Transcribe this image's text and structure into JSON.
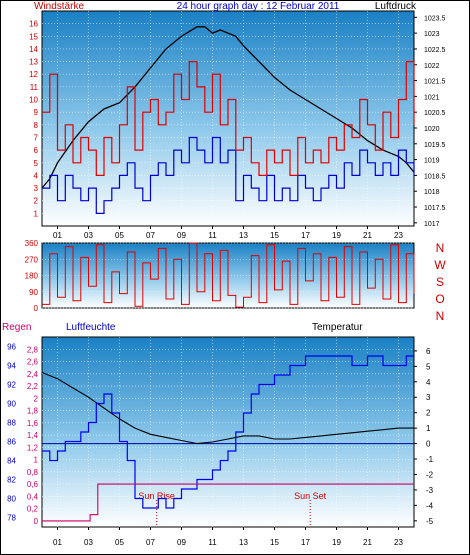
{
  "chart_data": [
    {
      "type": "line",
      "title": "24 hour graph day : 12 Februar 2011",
      "left_label": "Windstärke",
      "right_label": "Luftdruck",
      "x_ticks": [
        "01",
        "03",
        "05",
        "07",
        "09",
        "11",
        "13",
        "15",
        "17",
        "19",
        "21",
        "23"
      ],
      "left_ticks": [
        1,
        2,
        3,
        4,
        5,
        6,
        7,
        8,
        9,
        10,
        11,
        12,
        13,
        14,
        15,
        16
      ],
      "right_ticks": [
        1017,
        1017.5,
        1018,
        1018.5,
        1019,
        1019.5,
        1020,
        1020.5,
        1021,
        1021.5,
        1022,
        1022.5,
        1023,
        1023.5
      ],
      "xlim": [
        0,
        24
      ],
      "ylim_left": [
        0,
        17
      ],
      "ylim_right": [
        1016.9,
        1023.7
      ],
      "grid": true,
      "colors": {
        "gust": "#e00000",
        "wind": "#0000cc",
        "pressure": "#000000",
        "title": "#0000cc",
        "left_label": "#cc0000",
        "right_label": "#000000"
      },
      "series": [
        {
          "key": "pressure",
          "color": "#000000",
          "x": [
            0,
            0.5,
            1,
            2,
            3,
            4,
            5,
            6,
            7,
            8,
            9,
            10,
            10.5,
            11,
            11.5,
            12,
            12.5,
            13,
            14,
            15,
            16,
            17,
            18,
            19,
            20,
            21,
            22,
            23,
            23.5,
            24
          ],
          "y": [
            1018.1,
            1018.4,
            1018.9,
            1019.6,
            1020.2,
            1020.6,
            1020.8,
            1021.3,
            1021.9,
            1022.5,
            1022.9,
            1023.2,
            1023.2,
            1023.0,
            1023.1,
            1023.0,
            1022.9,
            1022.6,
            1022.1,
            1021.6,
            1021.2,
            1020.9,
            1020.6,
            1020.3,
            1020.0,
            1019.6,
            1019.3,
            1019.1,
            1018.9,
            1018.6
          ]
        },
        {
          "key": "wind",
          "color": "#0000cc",
          "x": [
            0,
            0.5,
            1,
            1.5,
            2,
            2.5,
            3,
            3.5,
            4,
            4.5,
            5,
            5.5,
            6,
            6.5,
            7,
            7.5,
            8,
            8.5,
            9,
            9.5,
            10,
            10.5,
            11,
            11.5,
            12,
            12.5,
            13,
            13.5,
            14,
            14.5,
            15,
            15.5,
            16,
            16.5,
            17,
            17.5,
            18,
            18.5,
            19,
            19.5,
            20,
            20.5,
            21,
            21.5,
            22,
            22.5,
            23,
            23.5,
            24
          ],
          "y": [
            3,
            4,
            2,
            4,
            3,
            2,
            3,
            1,
            2,
            3,
            4,
            5,
            3,
            2,
            4,
            5,
            4,
            6,
            5,
            7,
            6,
            5,
            7,
            5,
            6,
            2,
            4,
            3,
            2,
            4,
            2,
            3,
            2,
            4,
            3,
            2,
            3,
            4,
            3,
            5,
            4,
            6,
            5,
            4,
            5,
            4,
            6,
            5,
            4
          ]
        },
        {
          "key": "gust",
          "color": "#e00000",
          "x": [
            0,
            0.5,
            1,
            1.5,
            2,
            2.5,
            3,
            3.5,
            4,
            4.5,
            5,
            5.5,
            6,
            6.5,
            7,
            7.5,
            8,
            8.5,
            9,
            9.5,
            10,
            10.5,
            11,
            11.5,
            12,
            12.5,
            13,
            13.5,
            14,
            14.5,
            15,
            15.5,
            16,
            16.5,
            17,
            17.5,
            18,
            18.5,
            19,
            19.5,
            20,
            20.5,
            21,
            21.5,
            22,
            22.5,
            23,
            23.5,
            24
          ],
          "y": [
            9,
            12,
            6,
            8,
            5,
            7,
            6,
            4,
            7,
            5,
            8,
            11,
            6,
            9,
            10,
            8,
            9,
            12,
            10,
            13,
            11,
            9,
            12,
            8,
            10,
            6,
            7,
            5,
            4,
            6,
            5,
            6,
            4,
            7,
            5,
            6,
            5,
            7,
            6,
            8,
            7,
            10,
            8,
            6,
            9,
            7,
            10,
            13,
            8
          ]
        }
      ]
    },
    {
      "type": "line",
      "title": "",
      "x_ticks": [],
      "left_ticks": [
        0,
        90,
        180,
        270,
        360
      ],
      "right_label_letters": [
        "N",
        "W",
        "S",
        "O",
        "N"
      ],
      "xlim": [
        0,
        24
      ],
      "ylim": [
        0,
        360
      ],
      "colors": {
        "direction": "#e00000",
        "letters": "#cc0000"
      },
      "series": [
        {
          "key": "direction",
          "color": "#e00000",
          "x": [
            0,
            0.5,
            1,
            1.5,
            2,
            2.5,
            3,
            3.5,
            4,
            4.5,
            5,
            5.5,
            6,
            6.5,
            7,
            7.5,
            8,
            8.5,
            9,
            9.5,
            10,
            10.5,
            11,
            11.5,
            12,
            12.5,
            13,
            13.5,
            14,
            14.5,
            15,
            15.5,
            16,
            16.5,
            17,
            17.5,
            18,
            18.5,
            19,
            19.5,
            20,
            20.5,
            21,
            21.5,
            22,
            22.5,
            23,
            23.5,
            24
          ],
          "y": [
            20,
            300,
            60,
            340,
            40,
            280,
            120,
            350,
            30,
            200,
            80,
            310,
            10,
            250,
            160,
            330,
            50,
            270,
            20,
            360,
            90,
            300,
            40,
            320,
            70,
            5,
            60,
            290,
            30,
            350,
            100,
            260,
            20,
            330,
            150,
            300,
            40,
            280,
            60,
            340,
            20,
            310,
            110,
            270,
            50,
            350,
            30,
            300,
            80
          ]
        }
      ]
    },
    {
      "type": "line",
      "title": "",
      "rain_label": "Regen",
      "humidity_label": "Luftfeuchte",
      "temperature_label": "Temperatur",
      "x_ticks": [
        "01",
        "03",
        "05",
        "07",
        "09",
        "11",
        "13",
        "15",
        "17",
        "19",
        "21",
        "23"
      ],
      "humidity_ticks": [
        78,
        80,
        82,
        84,
        86,
        88,
        90,
        92,
        94,
        96
      ],
      "rain_ticks": [
        "0",
        "0,2",
        "0,4",
        "0,6",
        "0,8",
        "1",
        "1,2",
        "1,4",
        "1,6",
        "1,8",
        "2",
        "2,2",
        "2,4",
        "2,6",
        "2,8"
      ],
      "temperature_ticks": [
        -5,
        -4,
        -3,
        -2,
        -1,
        0,
        1,
        2,
        3,
        4,
        5,
        6
      ],
      "annotations": [
        {
          "text": "Sun Rise",
          "x": 7.4
        },
        {
          "text": "Sun Set",
          "x": 17.3
        }
      ],
      "xlim": [
        0,
        24
      ],
      "ylim_humidity": [
        77,
        97
      ],
      "ylim_rain": [
        -0.1,
        3.0
      ],
      "ylim_temperature": [
        -5.4,
        6.9
      ],
      "colors": {
        "humidity": "#0000ee",
        "rain": "#cc0066",
        "temperature": "#000000",
        "freezing_line": "#0000aa",
        "sun_marker": "#cc0000",
        "rain_label": "#cc0066",
        "humidity_label": "#0000cc",
        "temperature_label": "#000000"
      },
      "series": [
        {
          "key": "temperature",
          "color": "#000000",
          "x": [
            0,
            1,
            2,
            3,
            4,
            5,
            6,
            7,
            8,
            9,
            10,
            11,
            12,
            13,
            14,
            15,
            16,
            17,
            18,
            19,
            20,
            21,
            22,
            23,
            24
          ],
          "y": [
            4.6,
            4.2,
            3.6,
            3.0,
            2.3,
            1.6,
            1.0,
            0.6,
            0.4,
            0.2,
            0.0,
            0.1,
            0.3,
            0.5,
            0.5,
            0.3,
            0.3,
            0.4,
            0.5,
            0.6,
            0.7,
            0.8,
            0.9,
            1.0,
            1.0
          ]
        },
        {
          "key": "humidity",
          "color": "#0000ee",
          "x": [
            0,
            0.5,
            1,
            1.5,
            2,
            2.5,
            3,
            3.5,
            4,
            4.5,
            5,
            5.5,
            6,
            6.5,
            7,
            7.5,
            8,
            8.5,
            9,
            9.5,
            10,
            10.5,
            11,
            11.5,
            12,
            12.5,
            13,
            13.5,
            14,
            15,
            16,
            17,
            18,
            19,
            20,
            21,
            22,
            23,
            23.5,
            24
          ],
          "y": [
            85,
            84,
            85,
            86,
            86,
            87,
            88,
            90,
            91,
            89,
            86,
            84,
            80,
            79,
            79,
            80,
            79,
            80,
            81,
            81,
            82,
            82,
            83,
            84,
            85,
            87,
            89,
            91,
            92,
            93,
            94,
            95,
            95,
            95,
            94,
            95,
            94,
            94,
            95,
            95
          ]
        },
        {
          "key": "rain",
          "color": "#cc0066",
          "x": [
            0,
            3.1,
            3.1,
            3.6,
            3.6,
            4.9,
            4.9,
            24
          ],
          "y": [
            0,
            0,
            0.1,
            0.1,
            0.6,
            0.6,
            0.6,
            0.6
          ]
        }
      ]
    }
  ]
}
